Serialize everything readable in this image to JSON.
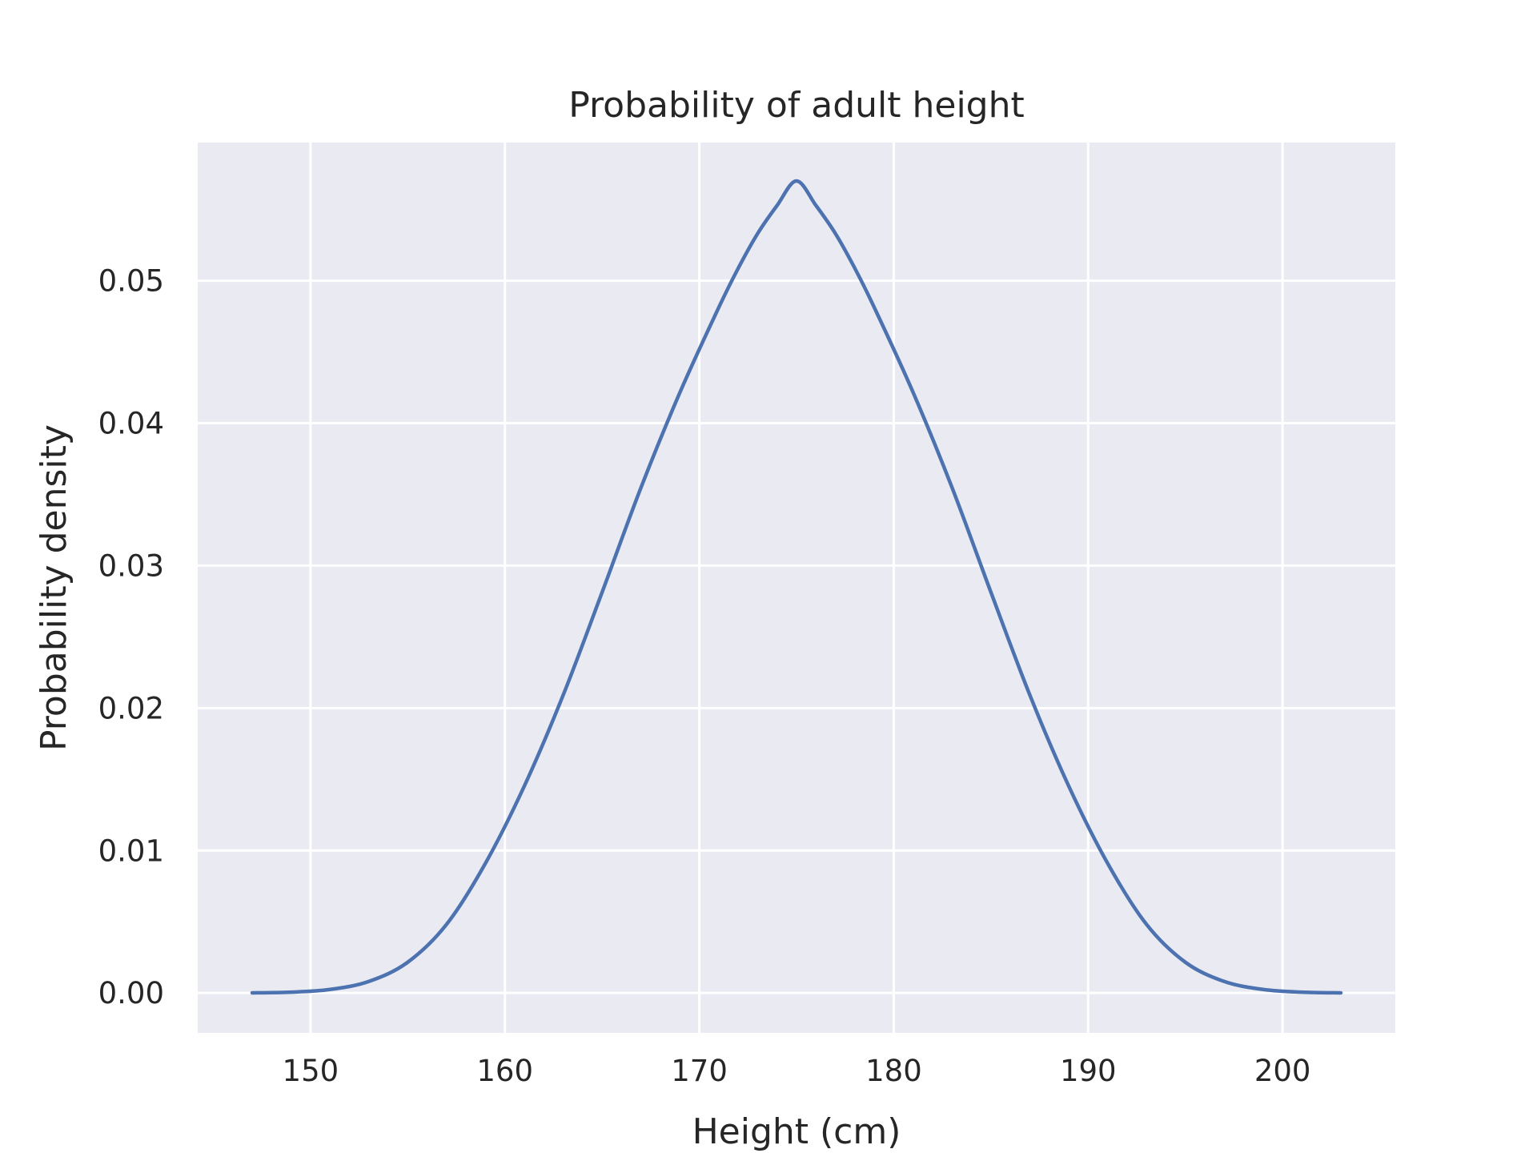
{
  "chart_data": {
    "type": "line",
    "title": "Probability of adult height",
    "xlabel": "Height (cm)",
    "ylabel": "Probability density",
    "xlim": [
      144.2,
      205.8
    ],
    "ylim": [
      -0.0028,
      0.0597
    ],
    "grid": true,
    "x_ticks": [
      150,
      160,
      170,
      180,
      190,
      200
    ],
    "x_tick_labels": [
      "150",
      "160",
      "170",
      "180",
      "190",
      "200"
    ],
    "y_ticks": [
      0.0,
      0.01,
      0.02,
      0.03,
      0.04,
      0.05
    ],
    "y_tick_labels": [
      "0.00",
      "0.01",
      "0.02",
      "0.03",
      "0.04",
      "0.05"
    ],
    "series": [
      {
        "name": "Probability density",
        "color": "#4c72b0",
        "x": [
          147,
          149,
          151,
          153,
          155,
          157,
          159,
          161,
          163,
          165,
          167,
          169,
          171,
          172,
          173,
          174,
          175,
          176,
          177,
          178,
          179,
          181,
          183,
          185,
          187,
          189,
          191,
          193,
          195,
          197,
          199,
          201,
          203
        ],
        "y": [
          1e-05,
          6e-05,
          0.00025,
          0.00081,
          0.00216,
          0.00482,
          0.00911,
          0.01453,
          0.02092,
          0.02813,
          0.03548,
          0.04215,
          0.04812,
          0.05087,
          0.05331,
          0.05528,
          0.057,
          0.05528,
          0.05331,
          0.05087,
          0.04812,
          0.04215,
          0.03548,
          0.02813,
          0.02092,
          0.01453,
          0.00911,
          0.00482,
          0.00216,
          0.00081,
          0.00025,
          6e-05,
          1e-05
        ]
      }
    ]
  },
  "colors": {
    "plot_background": "#eaeaf2",
    "grid": "#ffffff",
    "line": "#4c72b0",
    "text": "#262626"
  }
}
